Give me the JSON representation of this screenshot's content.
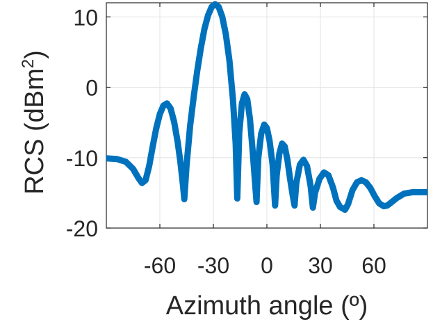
{
  "chart_data": {
    "type": "line",
    "title": "",
    "xlabel": "Azimuth angle (º)",
    "ylabel_main": "RCS (dBm",
    "ylabel_sup": "2",
    "ylabel_close": ")",
    "xlim": [
      -90,
      90
    ],
    "ylim": [
      -20,
      12
    ],
    "xticks": [
      -60,
      -30,
      0,
      30,
      60
    ],
    "xtick_labels": [
      "-60",
      "-30",
      "0",
      "30",
      "60"
    ],
    "yticks": [
      -20,
      -10,
      0,
      10
    ],
    "ytick_labels": [
      "-20",
      "-10",
      "0",
      "10"
    ],
    "grid": true,
    "line_color": "#0072bd",
    "series": [
      {
        "x": [
          -90,
          -84,
          -79,
          -75,
          -72,
          -70,
          -68,
          -66,
          -64,
          -62,
          -60,
          -58,
          -56,
          -54,
          -52,
          -50,
          -48.5,
          -47,
          -46.3,
          -45,
          -43,
          -41,
          -39,
          -37,
          -35,
          -33,
          -31,
          -29,
          -27,
          -25,
          -23,
          -21,
          -19,
          -17.5,
          -16.6,
          -15.5,
          -14,
          -12.5,
          -11,
          -9.5,
          -8,
          -6.8,
          -5.8,
          -4.8,
          -3.2,
          -1.5,
          0,
          1.5,
          3.2,
          4.6,
          5.5,
          7,
          8.5,
          10,
          11.5,
          13,
          14.5,
          15.5,
          16.5,
          18.5,
          20.5,
          22.5,
          24.5,
          25.8,
          27,
          29.5,
          32,
          34.5,
          37,
          39,
          41,
          43.8,
          45.5,
          48,
          50.5,
          53,
          55.5,
          58,
          60.5,
          63,
          65.5,
          67.5,
          70,
          73,
          77,
          82,
          86,
          90
        ],
        "y": [
          -10.1,
          -10.2,
          -10.6,
          -11.6,
          -12.9,
          -13.6,
          -13.2,
          -11.2,
          -8.4,
          -5.8,
          -3.8,
          -2.6,
          -2.3,
          -3.0,
          -4.9,
          -7.8,
          -10.6,
          -14,
          -15.9,
          -11.0,
          -5.4,
          -1.3,
          2.4,
          5.6,
          8.3,
          10.2,
          11.4,
          11.8,
          11.4,
          10.0,
          7.5,
          3.8,
          -1.8,
          -8.0,
          -15.8,
          -6.5,
          -2.3,
          -1.0,
          -1.7,
          -4.5,
          -9.0,
          -13.0,
          -16.3,
          -10.0,
          -6.6,
          -5.3,
          -5.8,
          -7.6,
          -11.0,
          -16.8,
          -12.5,
          -9.4,
          -8.0,
          -8.4,
          -10.3,
          -13.0,
          -15.4,
          -16.8,
          -13.6,
          -11.0,
          -10.3,
          -11.2,
          -14.0,
          -17.1,
          -15.0,
          -13.0,
          -12.1,
          -12.5,
          -14.2,
          -16.1,
          -17.0,
          -17.4,
          -16.6,
          -14.6,
          -13.5,
          -13.2,
          -13.5,
          -14.3,
          -15.5,
          -16.5,
          -16.9,
          -16.8,
          -16.3,
          -15.7,
          -15.1,
          -14.9,
          -14.9,
          -14.9
        ]
      }
    ]
  }
}
